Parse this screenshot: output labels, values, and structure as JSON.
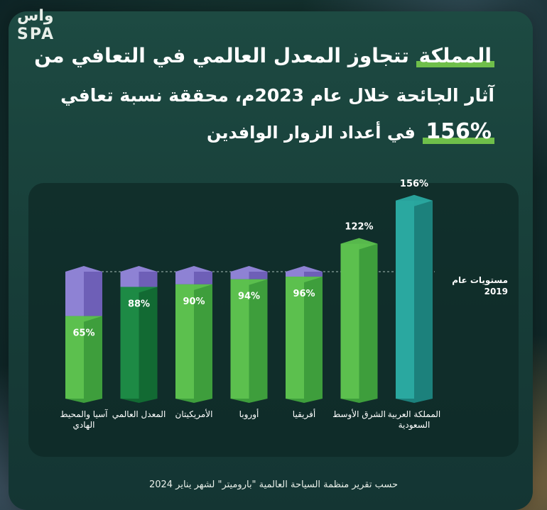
{
  "logo": {
    "arabic": "واس",
    "latin": "SPA"
  },
  "headline": {
    "line1_highlight": "المملكة",
    "line1_rest": "تتجاوز المعدل العالمي في التعافي من",
    "line2": "آثار الجائحة خلال عام 2023م، محققة نسبة تعافي",
    "line3_highlight": "156%",
    "line3_rest": "في أعداد الزوار الوافدين"
  },
  "chart_data": {
    "type": "bar",
    "categories": [
      "آسيا والمحيط الهادي",
      "المعدل العالمي",
      "الأمريكيتان",
      "أوروبا",
      "أفريقيا",
      "الشرق الأوسط",
      "المملكة العربية السعودية"
    ],
    "values": [
      65,
      88,
      90,
      94,
      96,
      122,
      156
    ],
    "data_labels": [
      "65%",
      "88%",
      "90%",
      "94%",
      "96%",
      "122%",
      "156%"
    ],
    "reference_line": {
      "value": 100,
      "label_line1": "مستويات عام",
      "label_line2": "2019"
    },
    "ylim": [
      0,
      170
    ]
  },
  "colors": {
    "bar_green": "#5cc04e",
    "bar_green_dark": "#3e9e3c",
    "bar_global": "#1d8a45",
    "bar_global_dark": "#126a33",
    "bar_ksa": "#2aa8a0",
    "bar_ksa_dark": "#1c817c",
    "gap_purple": "#8e82d4",
    "gap_purple_dark": "#6e5fb7",
    "background": "#173d38"
  },
  "source": "حسب تقرير منظمة السياحة العالمية \"باروميتر\" لشهر يناير 2024"
}
